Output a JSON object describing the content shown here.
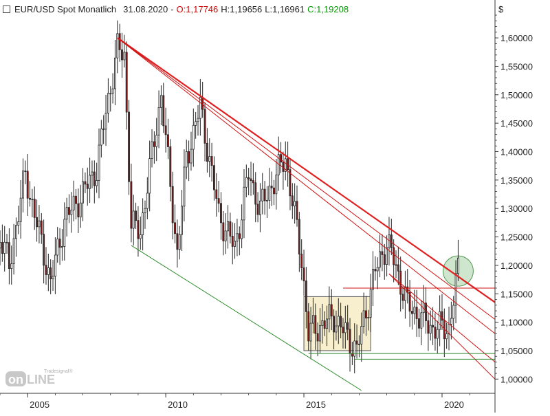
{
  "header": {
    "symbol": "EUR/USD Spot Monatlich",
    "date": "31.08.2020",
    "dash": "-",
    "open": "O:1,17746",
    "high": "H:1,19656",
    "low": "L:1,16961",
    "close": "C:1,19208"
  },
  "currency_symbol": "$",
  "logo": {
    "brand_small": "Tradesignal®",
    "brand_main": "onLINE"
  },
  "chart_data": {
    "type": "candlestick",
    "period": "monthly",
    "x_axis": {
      "ticks": [
        "2005",
        "2010",
        "2015",
        "2020"
      ],
      "range": [
        "2004-01",
        "2021-12"
      ]
    },
    "y_axis": {
      "ticks": [
        "1,00000",
        "1,05000",
        "1,10000",
        "1,15000",
        "1,20000",
        "1,25000",
        "1,30000",
        "1,35000",
        "1,40000",
        "1,45000",
        "1,50000",
        "1,55000",
        "1,60000"
      ],
      "range": [
        0.975,
        1.64
      ],
      "position": "right"
    },
    "anchors": [
      {
        "date": "2004-01",
        "close": 1.25
      },
      {
        "date": "2004-05",
        "close": 1.2
      },
      {
        "date": "2004-12",
        "close": 1.36
      },
      {
        "date": "2005-04",
        "close": 1.29
      },
      {
        "date": "2005-11",
        "close": 1.17
      },
      {
        "date": "2006-05",
        "close": 1.28
      },
      {
        "date": "2006-12",
        "close": 1.32
      },
      {
        "date": "2007-07",
        "close": 1.37
      },
      {
        "date": "2007-11",
        "close": 1.47
      },
      {
        "date": "2008-04",
        "close": 1.58
      },
      {
        "date": "2008-07",
        "close": 1.57
      },
      {
        "date": "2008-10",
        "close": 1.27
      },
      {
        "date": "2009-02",
        "close": 1.26
      },
      {
        "date": "2009-11",
        "close": 1.5
      },
      {
        "date": "2010-06",
        "close": 1.22
      },
      {
        "date": "2010-10",
        "close": 1.39
      },
      {
        "date": "2011-04",
        "close": 1.48
      },
      {
        "date": "2011-12",
        "close": 1.29
      },
      {
        "date": "2012-07",
        "close": 1.23
      },
      {
        "date": "2013-01",
        "close": 1.36
      },
      {
        "date": "2013-06",
        "close": 1.3
      },
      {
        "date": "2014-05",
        "close": 1.39
      },
      {
        "date": "2014-12",
        "close": 1.21
      },
      {
        "date": "2015-03",
        "close": 1.08
      },
      {
        "date": "2016-02",
        "close": 1.11
      },
      {
        "date": "2016-12",
        "close": 1.05
      },
      {
        "date": "2017-08",
        "close": 1.19
      },
      {
        "date": "2018-01",
        "close": 1.24
      },
      {
        "date": "2018-04",
        "close": 1.21
      },
      {
        "date": "2018-10",
        "close": 1.13
      },
      {
        "date": "2019-09",
        "close": 1.09
      },
      {
        "date": "2020-04",
        "close": 1.09
      },
      {
        "date": "2020-08",
        "close": 1.19
      }
    ],
    "trendlines": [
      {
        "color": "#e02020",
        "from": {
          "date": "2008-04",
          "price": 1.6
        },
        "to": {
          "date": "2021-12",
          "price": 1.135
        },
        "width": 2.2
      },
      {
        "color": "#d01010",
        "from": {
          "date": "2008-04",
          "price": 1.6
        },
        "to": {
          "date": "2021-12",
          "price": 1.105
        },
        "width": 1
      },
      {
        "color": "#d01010",
        "from": {
          "date": "2008-04",
          "price": 1.6
        },
        "to": {
          "date": "2021-12",
          "price": 1.08
        },
        "width": 1
      },
      {
        "color": "#d01010",
        "from": {
          "date": "2018-02",
          "price": 1.185
        },
        "to": {
          "date": "2021-12",
          "price": 1.03
        },
        "width": 1
      },
      {
        "color": "#d01010",
        "from": {
          "date": "2018-02",
          "price": 1.185
        },
        "to": {
          "date": "2021-12",
          "price": 1.0
        },
        "width": 1
      },
      {
        "color": "#2a8a2a",
        "from": {
          "date": "2008-10",
          "price": 1.235
        },
        "to": {
          "date": "2017-02",
          "price": 0.98
        },
        "width": 1
      },
      {
        "color": "#2a8a2a",
        "from": {
          "date": "2015-03",
          "price": 1.045
        },
        "to": {
          "date": "2021-12",
          "price": 1.045
        },
        "width": 1
      },
      {
        "color": "#2a8a2a",
        "from": {
          "date": "2016-11",
          "price": 1.035
        },
        "to": {
          "date": "2021-12",
          "price": 1.035
        },
        "width": 1
      },
      {
        "color": "#d01010",
        "from": {
          "date": "2016-06",
          "price": 1.16
        },
        "to": {
          "date": "2021-12",
          "price": 1.16
        },
        "width": 1
      }
    ],
    "consolidation_box": {
      "from": "2015-01",
      "to": "2017-06",
      "high": 1.145,
      "low": 1.05,
      "fill": "#f7efcd",
      "stroke": "#555555"
    },
    "highlight_circle": {
      "date": "2020-08",
      "price": 1.19,
      "fill": "#b9dcb9",
      "stroke": "#5a9a5a"
    },
    "grid": false,
    "candle_colors": {
      "up": "#ffffff",
      "down": "#8b1a1a",
      "outline": "#222222"
    }
  }
}
